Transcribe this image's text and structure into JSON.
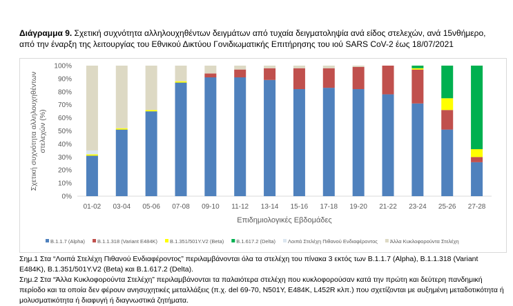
{
  "title": {
    "bold": "Διάγραμμα 9.",
    "text": " Σχετική συχνότητα αλληλουχηθέντων δειγμάτων από τυχαία δειγματοληψία ανά είδος στελεχών, ανά 15νθήμερο, από την έναρξη της λειτουργίας του Εθνικού Δικτύου Γονιδιωματικής Επιτήρησης του ιού SARS CoV-2 έως 18/07/2021"
  },
  "chart_data": {
    "type": "bar",
    "stacked": true,
    "xlabel": "Επιδημιολογικές Εβδομάδες",
    "ylabel": "Σχετική συχνότητα αλληλουχηθέντων στελεχών (%)",
    "ylim": [
      0,
      100
    ],
    "yticks": [
      "0%",
      "10%",
      "20%",
      "30%",
      "40%",
      "50%",
      "60%",
      "70%",
      "80%",
      "90%",
      "100%"
    ],
    "legend_position": "bottom",
    "categories": [
      "01-02",
      "03-04",
      "05-06",
      "07-08",
      "09-10",
      "11-12",
      "13-14",
      "15-16",
      "17-18",
      "19-20",
      "21-22",
      "23-24",
      "25-26",
      "27-28"
    ],
    "series": [
      {
        "name": "B.1.1.7 (Alpha)",
        "color": "#4f81bd",
        "values": [
          31,
          51,
          65,
          87,
          91,
          91,
          89,
          82,
          83,
          82,
          78,
          71,
          51,
          26
        ]
      },
      {
        "name": "B.1.1.318 (Variant E484K)",
        "color": "#c0504d",
        "values": [
          0,
          0,
          0,
          0,
          3,
          6,
          9,
          16,
          15,
          17,
          22,
          26,
          15,
          4
        ]
      },
      {
        "name": "B.1.351/501Y.V2 (Beta)",
        "color": "#ffff00",
        "values": [
          1,
          1,
          1,
          1,
          0,
          0,
          0,
          0,
          0,
          0,
          0,
          1,
          9,
          6
        ]
      },
      {
        "name": "B.1.617.2 (Delta)",
        "color": "#00b050",
        "values": [
          0,
          0,
          0,
          0,
          0,
          0,
          0,
          0,
          0,
          0,
          0,
          2,
          25,
          64
        ]
      },
      {
        "name": "Λοιπά Στελέχη Πιθανού Ενδιαφέροντος",
        "color": "#dce6f0",
        "values": [
          3,
          0,
          0,
          0,
          0,
          0,
          0,
          0,
          0,
          0,
          0,
          0,
          0,
          0
        ]
      },
      {
        "name": "Άλλα Κυκλοφορούντα Στελέχη",
        "color": "#ddd9c4",
        "values": [
          65,
          48,
          34,
          12,
          6,
          3,
          2,
          2,
          2,
          1,
          0,
          0,
          0,
          0
        ]
      }
    ]
  },
  "notes": [
    "Σημ.1 Στα “Λοιπά Στελέχη Πιθανού Ενδιαφέροντος” περιλαμβάνονται όλα τα στελέχη του πίνακα 3 εκτός των B.1.1.7 (Alpha), B.1.1.318 (Variant E484K), B.1.351/501Y.V2 (Beta) και B.1.617.2 (Delta).",
    "Σημ.2 Στα “Άλλα Κυκλοφορούντα Στελέχη” περιλαμβάνονται τα παλαιότερα στελέχη που κυκλοφορούσαν κατά την πρώτη και δεύτερη πανδημική περίοδο και τα οποία δεν φέρουν ανησυχητικές μεταλλάξεις (π.χ. del 69-70, N501Y, E484K, L452R κλπ.) που σχετίζονται με αυξημένη μεταδοτικότητα ή μολυσματικότητα ή διαφυγή ή διαγνωστικά ζητήματα."
  ]
}
